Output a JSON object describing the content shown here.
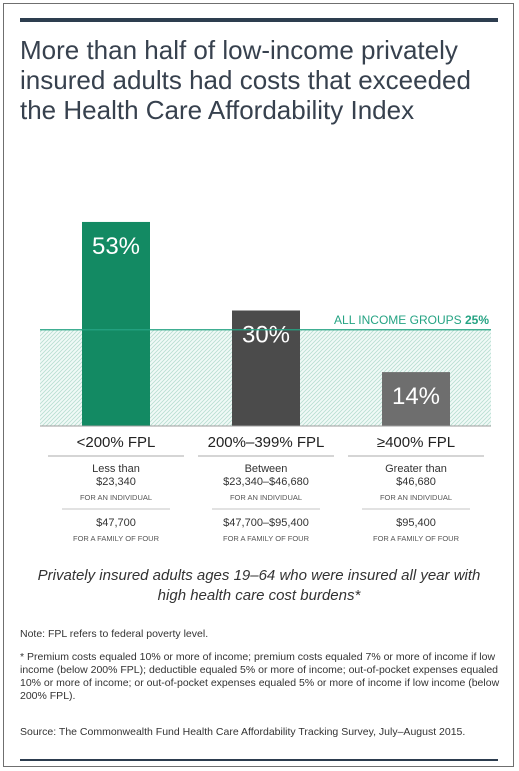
{
  "title": "More than half of low-income privately insured adults had costs that exceeded the Health Care Affordability Index",
  "subtitle": "Privately insured adults ages 19–64 who were insured all year with high health care cost burdens*",
  "note": "Note: FPL refers to federal poverty level.",
  "footnote": "* Premium costs equaled 10% or more of income; premium costs equaled 7% or more of income if low income (below 200% FPL); deductible equaled 5% or more of income; out-of-pocket expenses equaled 10% or more of income; or out-of-pocket expenses equaled 5% or more of income if low income (below 200% FPL).",
  "source": "Source: The Commonwealth Fund Health Care Affordability Tracking Survey, July–August 2015.",
  "colors": {
    "bar_low": "#138a63",
    "bar_mid": "#4b4b4b",
    "bar_high": "#6e6e6e",
    "reference": "#25a383",
    "title_rule": "#2d3d4f"
  },
  "chart_data": {
    "type": "bar",
    "categories": [
      "<200% FPL",
      "200%–399% FPL",
      "≥400% FPL"
    ],
    "values": [
      53,
      30,
      14
    ],
    "data_labels": [
      "53%",
      "30%",
      "14%"
    ],
    "reference_line": {
      "label_prefix": "ALL INCOME GROUPS",
      "label_value": "25%",
      "value": 25
    },
    "ylim": [
      0,
      60
    ],
    "details": [
      {
        "individual_prefix": "Less than",
        "individual_amount": "$23,340",
        "individual_label": "FOR AN INDIVIDUAL",
        "family_amount": "$47,700",
        "family_label": "FOR A FAMILY OF FOUR"
      },
      {
        "individual_prefix": "Between",
        "individual_amount": "$23,340–$46,680",
        "individual_label": "FOR AN INDIVIDUAL",
        "family_amount": "$47,700–$95,400",
        "family_label": "FOR A FAMILY OF FOUR"
      },
      {
        "individual_prefix": "Greater than",
        "individual_amount": "$46,680",
        "individual_label": "FOR AN INDIVIDUAL",
        "family_amount": "$95,400",
        "family_label": "FOR A FAMILY OF FOUR"
      }
    ]
  }
}
